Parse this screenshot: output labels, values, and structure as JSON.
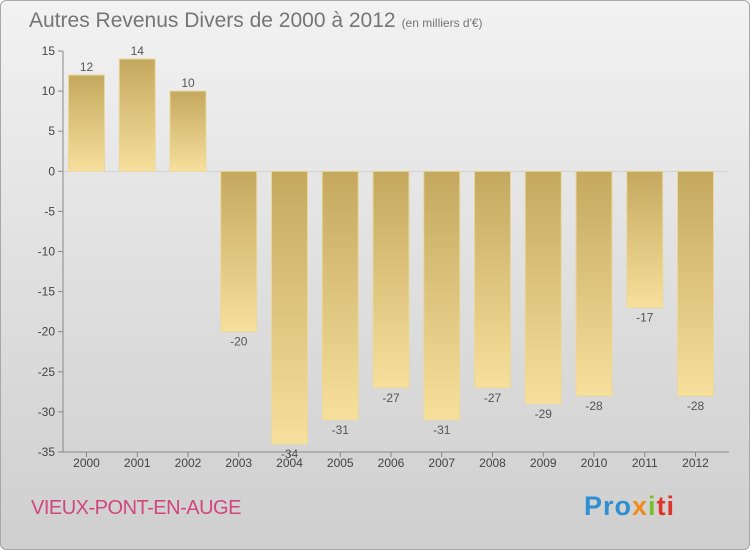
{
  "chart_data": {
    "type": "bar",
    "title": "Autres Revenus Divers de 2000 à 2012",
    "subtitle": "(en milliers d'€)",
    "categories": [
      "2000",
      "2001",
      "2002",
      "2003",
      "2004",
      "2005",
      "2006",
      "2007",
      "2008",
      "2009",
      "2010",
      "2011",
      "2012"
    ],
    "values": [
      12,
      14,
      10,
      -20,
      -34,
      -31,
      -27,
      -31,
      -27,
      -29,
      -28,
      -17,
      -28
    ],
    "data_labels": [
      "12",
      "14",
      "10",
      "-20",
      "-34",
      "-31",
      "-27",
      "-31",
      "-27",
      "-29",
      "-28",
      "-17",
      "-28"
    ],
    "ylim": [
      -35,
      15
    ],
    "yticks": [
      15,
      10,
      5,
      0,
      -5,
      -10,
      -15,
      -20,
      -25,
      -30,
      -35
    ],
    "ytick_labels": [
      "15",
      "10",
      "5",
      "0",
      "-5",
      "-10",
      "-15",
      "-20",
      "-25",
      "-30",
      "-35"
    ],
    "grid": false,
    "colors": {
      "bar_dark": "#c4a85e",
      "bar_light": "#f7e09c",
      "bar_edge": "#e8d89e"
    }
  },
  "footer": {
    "place": "VIEUX-PONT-EN-AUGE",
    "logo": {
      "p1": "Pro",
      "p2": "x",
      "p3": "i",
      "p4": "ti"
    }
  }
}
